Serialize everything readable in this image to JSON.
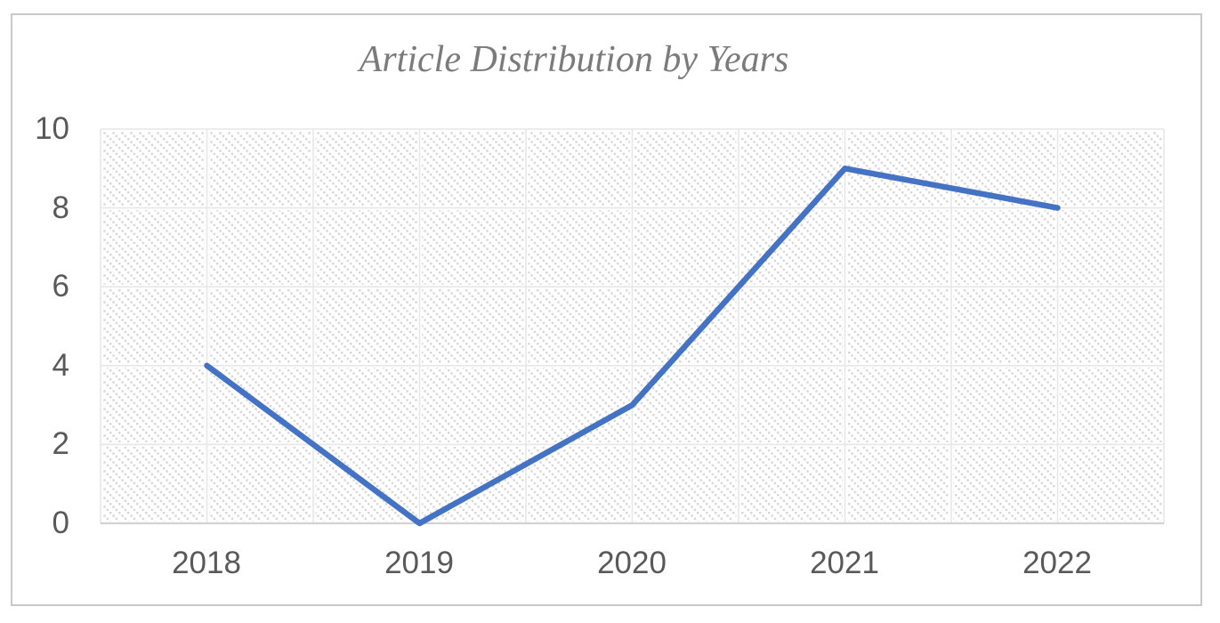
{
  "chart_data": {
    "type": "line",
    "title": "Article Distribution by Years",
    "categories": [
      "2018",
      "2019",
      "2020",
      "2021",
      "2022"
    ],
    "values": [
      4,
      0,
      3,
      9,
      8
    ],
    "xlabel": "",
    "ylabel": "",
    "ylim": [
      0,
      10
    ],
    "yticks": [
      0,
      2,
      4,
      6,
      8,
      10
    ],
    "legend": "none",
    "grid": "horizontal major gridlines every 2 units; vertical gridlines at category edges and centers",
    "plot_background": "light gray diagonal dotted hatch pattern on white",
    "colors": {
      "line": "#4472C4",
      "gridline": "#E7E7E7",
      "axis": "#D2D2D2",
      "pattern_dot": "#D9D9D9",
      "tick_text": "#595959",
      "title_text": "#7B7B7B",
      "frame_border": "#C9C9C9"
    }
  }
}
